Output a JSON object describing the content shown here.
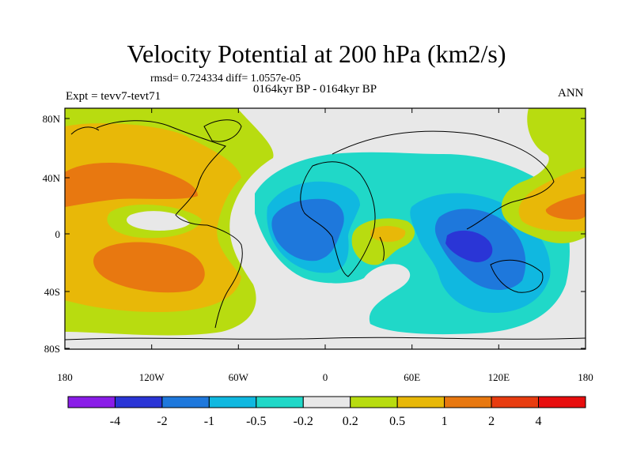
{
  "title": "Velocity Potential at 200 hPa (km2/s)",
  "stats": "rmsd= 0.724334 diff= 1.0557e-05",
  "experiment": "Expt = tevv7-tevt71",
  "period": "0164kyr BP - 0164kyr BP",
  "season": "ANN",
  "map": {
    "lat_ticks": [
      "80N",
      "40N",
      "0",
      "40S",
      "80S"
    ],
    "lon_ticks": [
      "180",
      "120W",
      "60W",
      "0",
      "60E",
      "120E",
      "180"
    ],
    "background_color": "#e8e8e8"
  },
  "colorbar": {
    "labels": [
      "-4",
      "-2",
      "-1",
      "-0.5",
      "-0.2",
      "0.2",
      "0.5",
      "1",
      "2",
      "4"
    ],
    "colors": [
      "#8a1de8",
      "#2a35d6",
      "#1e78dc",
      "#10b8e0",
      "#20d8c8",
      "#e8e8e8",
      "#b8dc10",
      "#e8b808",
      "#e87810",
      "#e83c10",
      "#e80e0e"
    ]
  }
}
